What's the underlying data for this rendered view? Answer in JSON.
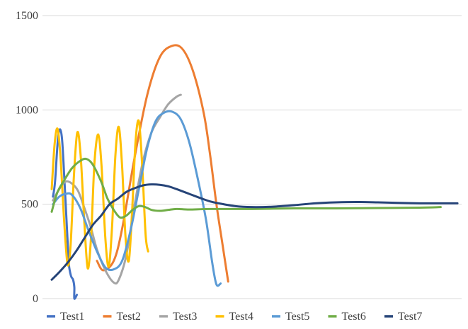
{
  "chart_data": {
    "type": "line",
    "title": "",
    "xlabel": "",
    "ylabel": "",
    "ylim": [
      0,
      1500
    ],
    "xlim": [
      0,
      100
    ],
    "yticks": [
      0,
      500,
      1000,
      1500
    ],
    "grid": true,
    "legend_position": "bottom",
    "series": [
      {
        "name": "Test1",
        "color": "#4472C4",
        "points": [
          [
            2.5,
            540
          ],
          [
            3,
            620
          ],
          [
            3.8,
            870
          ],
          [
            4.6,
            860
          ],
          [
            5.3,
            600
          ],
          [
            6,
            300
          ],
          [
            6.3,
            180
          ],
          [
            6.8,
            120
          ],
          [
            7.3,
            100
          ],
          [
            7.6,
            60
          ],
          [
            7.6,
            0
          ],
          [
            8.2,
            20
          ]
        ]
      },
      {
        "name": "Test2",
        "color": "#ED7D31",
        "points": [
          [
            13,
            200
          ],
          [
            14.5,
            150
          ],
          [
            17,
            200
          ],
          [
            19,
            370
          ],
          [
            22,
            750
          ],
          [
            25,
            1080
          ],
          [
            28,
            1280
          ],
          [
            31,
            1340
          ],
          [
            33.5,
            1320
          ],
          [
            36,
            1200
          ],
          [
            38.5,
            980
          ],
          [
            40,
            760
          ],
          [
            41.5,
            500
          ],
          [
            43,
            280
          ],
          [
            44.3,
            90
          ]
        ]
      },
      {
        "name": "Test3",
        "color": "#A5A5A5",
        "points": [
          [
            2.5,
            520
          ],
          [
            4,
            580
          ],
          [
            5.5,
            620
          ],
          [
            7,
            610
          ],
          [
            8.5,
            570
          ],
          [
            10,
            480
          ],
          [
            11.5,
            380
          ],
          [
            13,
            260
          ],
          [
            15,
            150
          ],
          [
            17,
            85
          ],
          [
            18.2,
            100
          ],
          [
            20,
            230
          ],
          [
            22,
            500
          ],
          [
            24,
            730
          ],
          [
            26,
            880
          ],
          [
            28,
            960
          ],
          [
            30,
            1030
          ],
          [
            32,
            1070
          ],
          [
            33,
            1080
          ]
        ]
      },
      {
        "name": "Test4",
        "color": "#FFC000",
        "points": [
          [
            2.2,
            580
          ],
          [
            2.9,
            820
          ],
          [
            3.6,
            900
          ],
          [
            4.3,
            750
          ],
          [
            5.2,
            400
          ],
          [
            6,
            180
          ],
          [
            6.7,
            280
          ],
          [
            7.5,
            650
          ],
          [
            8.3,
            880
          ],
          [
            9.1,
            760
          ],
          [
            10,
            400
          ],
          [
            10.8,
            160
          ],
          [
            11.6,
            330
          ],
          [
            12.4,
            720
          ],
          [
            13.3,
            870
          ],
          [
            14.1,
            700
          ],
          [
            15,
            320
          ],
          [
            15.8,
            170
          ],
          [
            16.6,
            380
          ],
          [
            17.4,
            760
          ],
          [
            18.2,
            910
          ],
          [
            19,
            700
          ],
          [
            19.8,
            330
          ],
          [
            20.6,
            200
          ],
          [
            21.4,
            470
          ],
          [
            22.2,
            830
          ],
          [
            23,
            940
          ],
          [
            23.8,
            700
          ],
          [
            24.6,
            340
          ],
          [
            25.2,
            250
          ]
        ]
      },
      {
        "name": "Test5",
        "color": "#5B9BD5",
        "points": [
          [
            2.5,
            500
          ],
          [
            4,
            540
          ],
          [
            5.5,
            555
          ],
          [
            7,
            550
          ],
          [
            9,
            480
          ],
          [
            11,
            360
          ],
          [
            13,
            250
          ],
          [
            15,
            165
          ],
          [
            17,
            155
          ],
          [
            19,
            200
          ],
          [
            21,
            360
          ],
          [
            23,
            580
          ],
          [
            25,
            800
          ],
          [
            27,
            940
          ],
          [
            29,
            985
          ],
          [
            31,
            990
          ],
          [
            33,
            950
          ],
          [
            35,
            830
          ],
          [
            37,
            640
          ],
          [
            39,
            420
          ],
          [
            40.5,
            190
          ],
          [
            41.5,
            75
          ],
          [
            42.5,
            80
          ]
        ]
      },
      {
        "name": "Test6",
        "color": "#70AD47",
        "points": [
          [
            2.2,
            460
          ],
          [
            3.5,
            560
          ],
          [
            5,
            620
          ],
          [
            7,
            690
          ],
          [
            9,
            730
          ],
          [
            10.5,
            740
          ],
          [
            12,
            710
          ],
          [
            14,
            620
          ],
          [
            15.5,
            530
          ],
          [
            17,
            470
          ],
          [
            18.5,
            430
          ],
          [
            20,
            440
          ],
          [
            21.5,
            470
          ],
          [
            23,
            490
          ],
          [
            24.5,
            485
          ],
          [
            26,
            470
          ],
          [
            28,
            465
          ],
          [
            30,
            470
          ],
          [
            32,
            475
          ],
          [
            35,
            472
          ],
          [
            40,
            475
          ],
          [
            50,
            475
          ],
          [
            60,
            478
          ],
          [
            70,
            478
          ],
          [
            80,
            480
          ],
          [
            90,
            482
          ],
          [
            95,
            485
          ]
        ]
      },
      {
        "name": "Test7",
        "color": "#264478",
        "points": [
          [
            2.2,
            100
          ],
          [
            4,
            140
          ],
          [
            6,
            190
          ],
          [
            8,
            250
          ],
          [
            10,
            320
          ],
          [
            12,
            390
          ],
          [
            14,
            440
          ],
          [
            16,
            500
          ],
          [
            18,
            530
          ],
          [
            20,
            565
          ],
          [
            22,
            585
          ],
          [
            24,
            600
          ],
          [
            26,
            605
          ],
          [
            28,
            603
          ],
          [
            30,
            595
          ],
          [
            32,
            580
          ],
          [
            35,
            555
          ],
          [
            38,
            530
          ],
          [
            40,
            515
          ],
          [
            42,
            505
          ],
          [
            46,
            490
          ],
          [
            50,
            485
          ],
          [
            55,
            487
          ],
          [
            60,
            495
          ],
          [
            65,
            505
          ],
          [
            70,
            510
          ],
          [
            75,
            512
          ],
          [
            80,
            510
          ],
          [
            85,
            507
          ],
          [
            90,
            505
          ],
          [
            95,
            505
          ],
          [
            99,
            505
          ]
        ]
      }
    ]
  }
}
